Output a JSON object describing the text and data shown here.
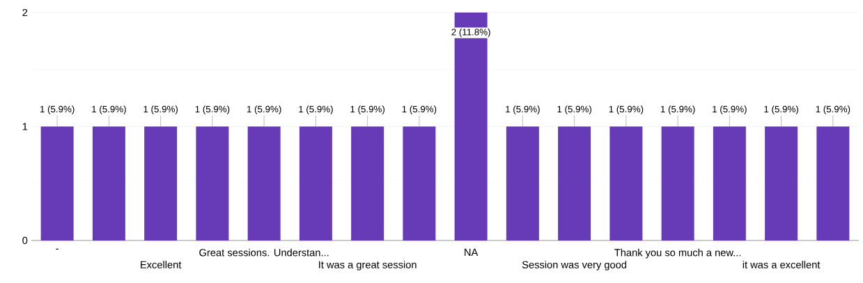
{
  "chart_data": {
    "type": "bar",
    "categories": [
      "-",
      null,
      "Excellent",
      null,
      "Great sessions. Understan...",
      null,
      "It was a great session",
      null,
      "NA",
      null,
      "Session was very good",
      null,
      "Thank you so much a new...",
      null,
      "it was a excellent",
      null
    ],
    "values": [
      1,
      1,
      1,
      1,
      1,
      1,
      1,
      1,
      2,
      1,
      1,
      1,
      1,
      1,
      1,
      1
    ],
    "value_labels": [
      "1 (5.9%)",
      "1 (5.9%)",
      "1 (5.9%)",
      "1 (5.9%)",
      "1 (5.9%)",
      "1 (5.9%)",
      "1 (5.9%)",
      "1 (5.9%)",
      "2 (11.8%)",
      "1 (5.9%)",
      "1 (5.9%)",
      "1 (5.9%)",
      "1 (5.9%)",
      "1 (5.9%)",
      "1 (5.9%)",
      "1 (5.9%)"
    ],
    "color": "#673ab7",
    "ylim": [
      0,
      2
    ],
    "yticks": [
      0,
      1,
      2
    ],
    "grid": "y"
  }
}
